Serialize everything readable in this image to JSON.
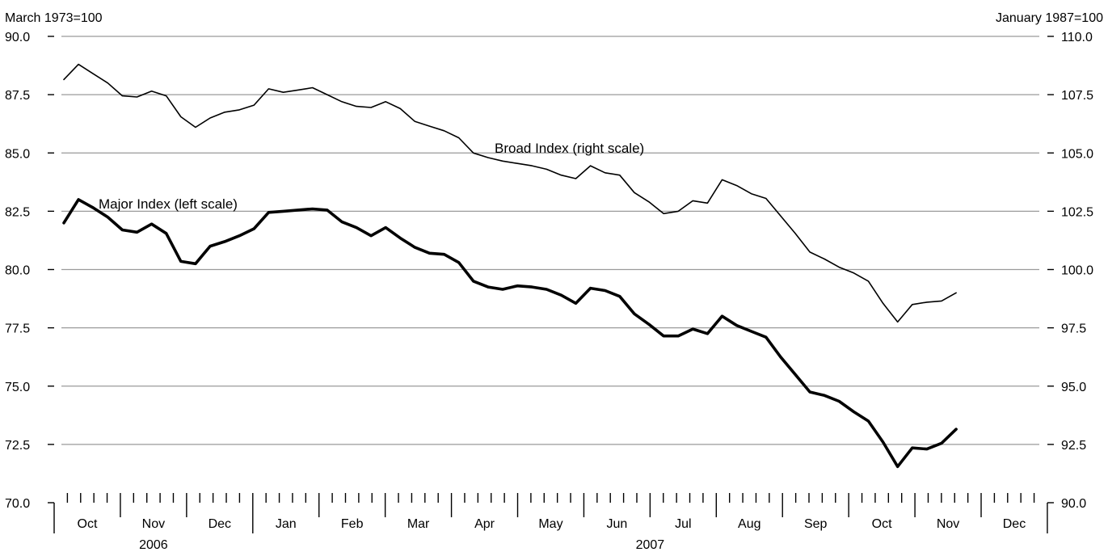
{
  "chart_data": {
    "type": "line",
    "left_axis": {
      "label": "March 1973=100",
      "ylim": [
        70.0,
        90.0
      ],
      "ticks": [
        "70.0",
        "72.5",
        "75.0",
        "77.5",
        "80.0",
        "82.5",
        "85.0",
        "87.5",
        "90.0"
      ]
    },
    "right_axis": {
      "label": "January 1987=100",
      "ylim": [
        90.0,
        110.0
      ],
      "ticks": [
        "90.0",
        "92.5",
        "95.0",
        "97.5",
        "100.0",
        "102.5",
        "105.0",
        "107.5",
        "110.0"
      ]
    },
    "grid": true,
    "x_axis": {
      "months": [
        "Oct",
        "Nov",
        "Dec",
        "Jan",
        "Feb",
        "Mar",
        "Apr",
        "May",
        "Jun",
        "Jul",
        "Aug",
        "Sep",
        "Oct",
        "Nov",
        "Dec"
      ],
      "years": [
        {
          "label": "2006",
          "months": [
            "Oct",
            "Nov",
            "Dec"
          ]
        },
        {
          "label": "2007",
          "months": [
            "Jan",
            "Feb",
            "Mar",
            "Apr",
            "May",
            "Jun",
            "Jul",
            "Aug",
            "Sep",
            "Oct",
            "Nov",
            "Dec"
          ]
        }
      ]
    },
    "series": [
      {
        "name": "Broad Index (right scale)",
        "axis": "right",
        "style": "thin",
        "values": [
          108.15,
          108.8,
          108.4,
          108.0,
          107.45,
          107.4,
          107.65,
          107.45,
          106.55,
          106.1,
          106.5,
          106.75,
          106.85,
          107.05,
          107.75,
          107.6,
          107.7,
          107.8,
          107.5,
          107.2,
          107.0,
          106.95,
          107.2,
          106.9,
          106.35,
          106.15,
          105.95,
          105.65,
          105.0,
          104.8,
          104.65,
          104.55,
          104.45,
          104.3,
          104.05,
          103.9,
          104.45,
          104.15,
          104.05,
          103.3,
          102.9,
          102.4,
          102.5,
          102.95,
          102.85,
          103.85,
          103.6,
          103.25,
          103.05,
          102.3,
          101.55,
          100.75,
          100.45,
          100.1,
          99.85,
          99.5,
          98.55,
          97.75,
          98.5,
          98.6,
          98.65,
          99.0
        ]
      },
      {
        "name": "Major Index (left scale)",
        "axis": "left",
        "style": "thick",
        "values": [
          82.0,
          83.0,
          82.65,
          82.25,
          81.7,
          81.6,
          81.95,
          81.55,
          80.35,
          80.25,
          81.0,
          81.2,
          81.45,
          81.75,
          82.45,
          82.5,
          82.55,
          82.6,
          82.55,
          82.05,
          81.8,
          81.45,
          81.8,
          81.35,
          80.95,
          80.7,
          80.65,
          80.3,
          79.5,
          79.25,
          79.15,
          79.3,
          79.25,
          79.15,
          78.9,
          78.55,
          79.2,
          79.1,
          78.85,
          78.1,
          77.65,
          77.15,
          77.15,
          77.45,
          77.25,
          78.0,
          77.6,
          77.35,
          77.1,
          76.25,
          75.5,
          74.75,
          74.6,
          74.35,
          73.9,
          73.5,
          72.6,
          71.55,
          72.35,
          72.3,
          72.55,
          73.15
        ]
      }
    ]
  }
}
